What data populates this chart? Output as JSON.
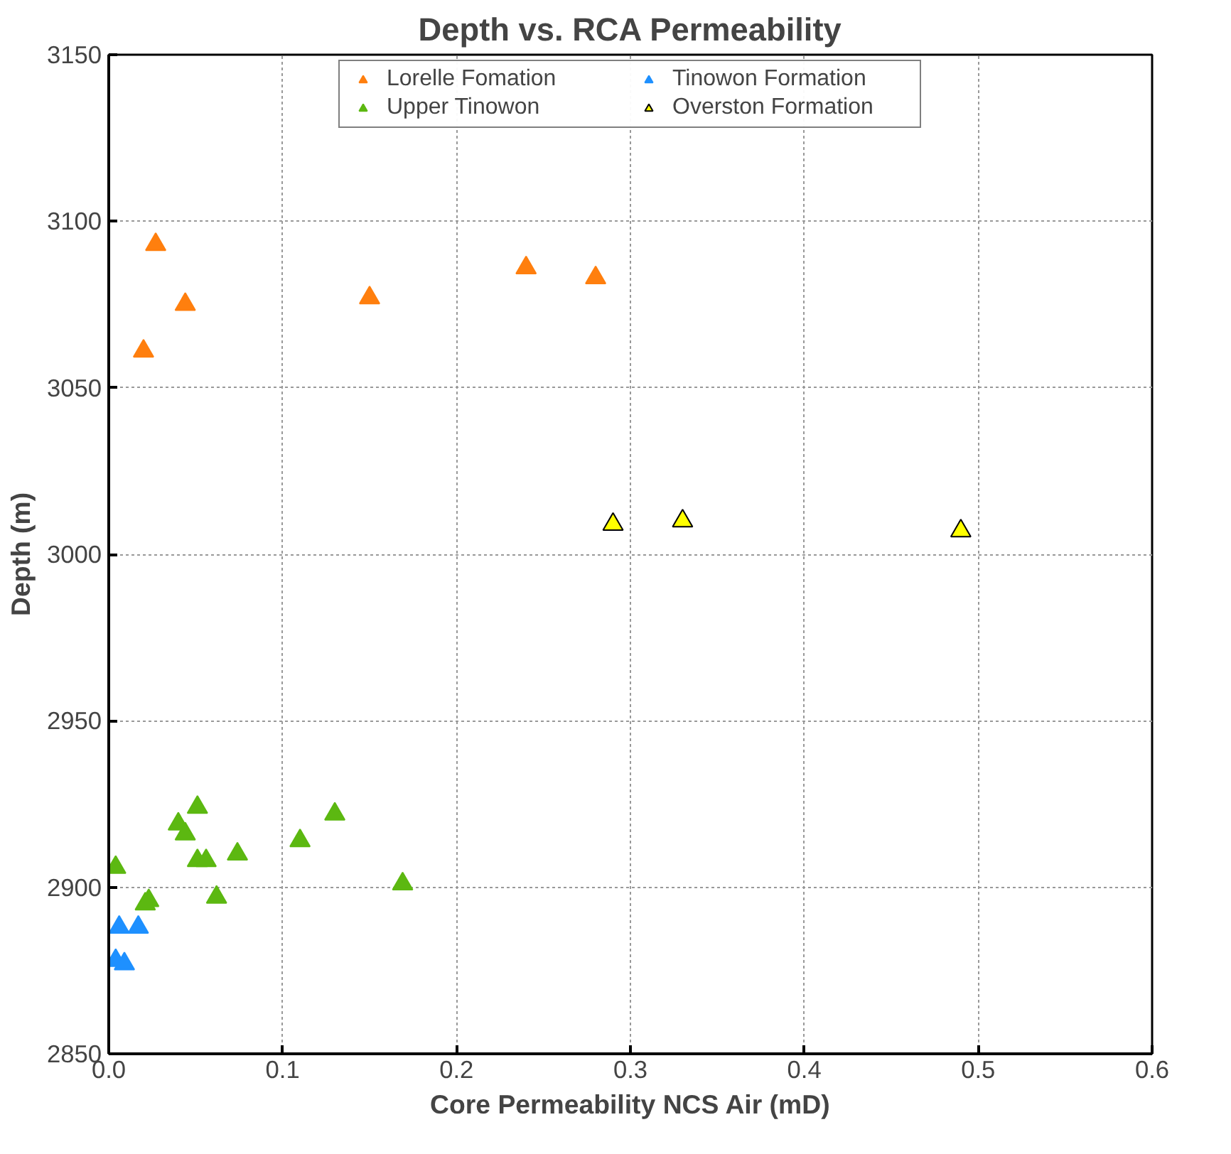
{
  "chart_data": {
    "type": "scatter",
    "title": "Depth vs. RCA Permeability",
    "xlabel": "Core Permeability NCS Air (mD)",
    "ylabel": "Depth (m)",
    "xlim": [
      0,
      0.6
    ],
    "ylim": [
      2850,
      3150
    ],
    "xticks": [
      {
        "value": 0,
        "label": "0.0"
      },
      0.1,
      0.2,
      0.3,
      0.4,
      0.5,
      0.6
    ],
    "yticks": [
      2850,
      2900,
      2950,
      3000,
      3050,
      3100,
      3150
    ],
    "grid": true,
    "legend": "top",
    "marker": "triangle",
    "series": [
      {
        "name": "Lorelle Fomation",
        "color": "#ff7f0e",
        "x": [
          0.027,
          0.044,
          0.02,
          0.15,
          0.24,
          0.28
        ],
        "values": [
          3093,
          3075,
          3061,
          3077,
          3086,
          3083
        ]
      },
      {
        "name": "Tinowon Formation",
        "color": "#1e90ff",
        "x": [
          0.006,
          0.017,
          0.004,
          0.009
        ],
        "values": [
          2888,
          2888,
          2878,
          2877
        ]
      },
      {
        "name": "Upper Tinowon",
        "color": "#5cb811",
        "x": [
          0.051,
          0.04,
          0.044,
          0.004,
          0.051,
          0.056,
          0.074,
          0.11,
          0.13,
          0.169,
          0.062,
          0.023,
          0.021
        ],
        "values": [
          2924,
          2919,
          2916,
          2906,
          2908,
          2908,
          2910,
          2914,
          2922,
          2901,
          2897,
          2896,
          2895
        ]
      },
      {
        "name": "Overston Formation",
        "color": "#ffff00",
        "x": [
          0.29,
          0.33,
          0.49
        ],
        "values": [
          3009,
          3010,
          3007
        ]
      }
    ]
  }
}
